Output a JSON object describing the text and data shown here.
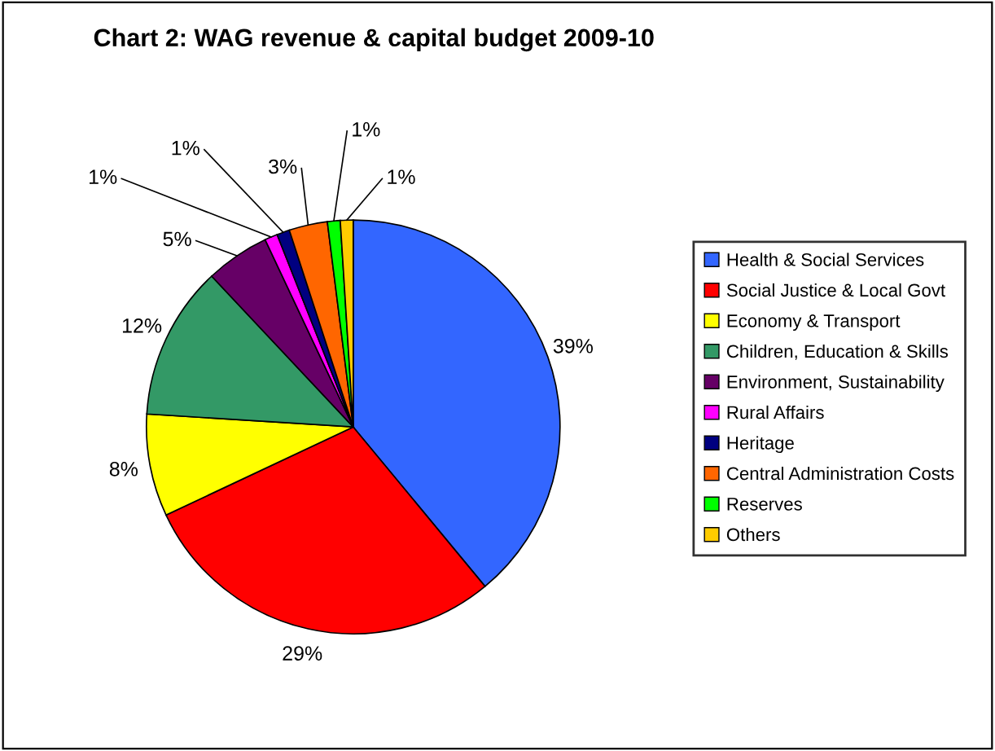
{
  "chart_data": {
    "type": "pie",
    "title": "Chart 2: WAG revenue & capital budget 2009-10",
    "categories": [
      "Health & Social Services",
      "Social Justice & Local Govt",
      "Economy & Transport",
      "Children, Education & Skills",
      "Environment, Sustainability",
      "Rural Affairs",
      "Heritage",
      "Central Administration Costs",
      "Reserves",
      "Others"
    ],
    "values": [
      39,
      29,
      8,
      12,
      5,
      1,
      1,
      3,
      1,
      1
    ],
    "value_labels": [
      "39%",
      "29%",
      "8%",
      "12%",
      "5%",
      "1%",
      "1%",
      "3%",
      "1%",
      "1%"
    ],
    "colors": [
      "#3366ff",
      "#ff0000",
      "#ffff00",
      "#339966",
      "#660066",
      "#ff00ff",
      "#000080",
      "#ff6600",
      "#00ff00",
      "#ffcc00"
    ],
    "legend": "right"
  }
}
